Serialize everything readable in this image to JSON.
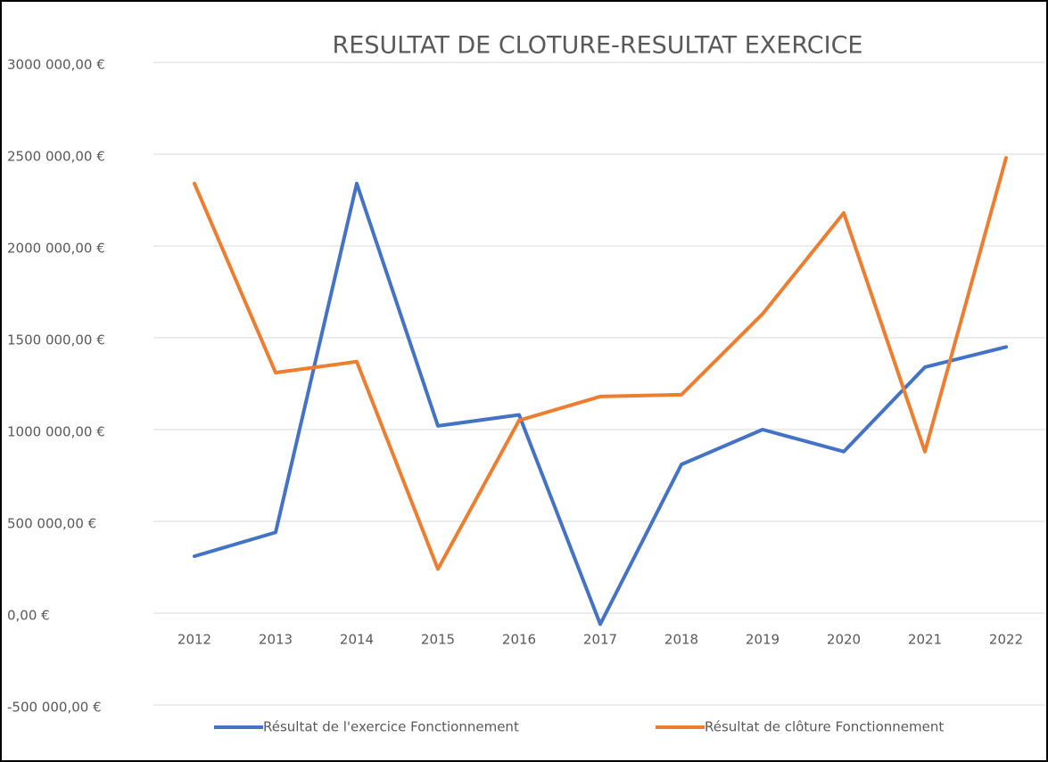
{
  "chart_data": {
    "type": "line",
    "title": "RESULTAT DE CLOTURE-RESULTAT EXERCICE",
    "categories": [
      "2012",
      "2013",
      "2014",
      "2015",
      "2016",
      "2017",
      "2018",
      "2019",
      "2020",
      "2021",
      "2022"
    ],
    "series": [
      {
        "name": "Résultat de l'exercice Fonctionnement",
        "color": "#4472c4",
        "values": [
          310000,
          440000,
          2340000,
          1020000,
          1080000,
          -60000,
          810000,
          1000000,
          880000,
          1340000,
          1450000
        ]
      },
      {
        "name": "Résultat de clôture Fonctionnement",
        "color": "#ed7d31",
        "values": [
          2340000,
          1310000,
          1370000,
          240000,
          1050000,
          1180000,
          1190000,
          1630000,
          2180000,
          880000,
          2480000
        ]
      }
    ],
    "ylim": [
      -500000,
      3000000
    ],
    "yticks": [
      {
        "value": -500000,
        "label": "-500 000,00 €"
      },
      {
        "value": 0,
        "label": "0,00 €"
      },
      {
        "value": 500000,
        "label": "500 000,00 €"
      },
      {
        "value": 1000000,
        "label": "1000 000,00 €"
      },
      {
        "value": 1500000,
        "label": "1500 000,00 €"
      },
      {
        "value": 2000000,
        "label": "2000 000,00 €"
      },
      {
        "value": 2500000,
        "label": "2500 000,00 €"
      },
      {
        "value": 3000000,
        "label": "3000 000,00 €"
      }
    ],
    "grid": true,
    "legend": "bottom"
  }
}
